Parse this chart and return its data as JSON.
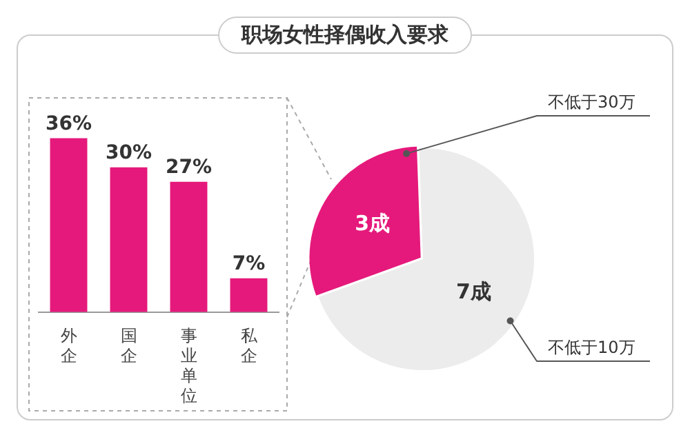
{
  "chart_data": [
    {
      "type": "bar",
      "categories": [
        "外企",
        "国企",
        "事业单位",
        "私企"
      ],
      "values": [
        36,
        30,
        27,
        7
      ],
      "value_labels": [
        "36%",
        "30%",
        "27%",
        "7%"
      ],
      "color": "#e5197b"
    },
    {
      "type": "pie",
      "title": "职场女性择偶收入要求",
      "categories": [
        "不低于30万",
        "不低于10万"
      ],
      "values": [
        3,
        7
      ],
      "value_labels": [
        "3成",
        "7成"
      ],
      "colors": [
        "#e5197b",
        "#ececec"
      ]
    }
  ]
}
